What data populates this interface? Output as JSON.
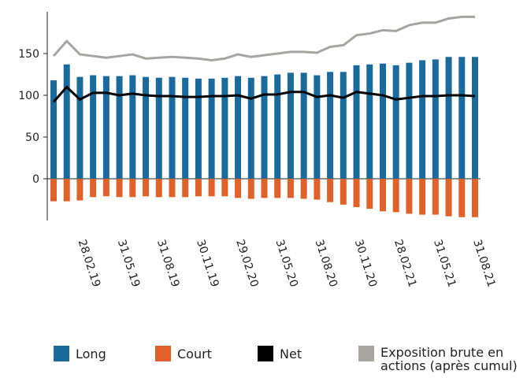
{
  "chart_data": {
    "type": "bar",
    "categories": [
      null,
      null,
      "28.02.19",
      null,
      null,
      "31.05.19",
      null,
      null,
      "31.08.19",
      null,
      null,
      "30.11.19",
      null,
      null,
      "29.02.20",
      null,
      null,
      "31.05.20",
      null,
      null,
      "31.08.20",
      null,
      null,
      "30.11.20",
      null,
      null,
      "28.02.21",
      null,
      null,
      "31.05.21",
      null,
      null,
      "31.08.21"
    ],
    "series": [
      {
        "name": "Long",
        "type": "bar",
        "color": "#1b6a9c",
        "values": [
          118,
          137,
          122,
          124,
          123,
          123,
          124,
          122,
          121,
          122,
          121,
          120,
          120,
          121,
          123,
          121,
          123,
          125,
          127,
          127,
          124,
          128,
          128,
          136,
          137,
          138,
          136,
          139,
          142,
          143,
          146,
          146,
          146
        ]
      },
      {
        "name": "Court",
        "type": "bar",
        "color": "#e0622a",
        "values": [
          -27,
          -27,
          -26,
          -22,
          -21,
          -22,
          -22,
          -21,
          -22,
          -22,
          -22,
          -21,
          -21,
          -21,
          -23,
          -24,
          -23,
          -23,
          -23,
          -24,
          -25,
          -28,
          -31,
          -34,
          -36,
          -39,
          -40,
          -42,
          -43,
          -43,
          -45,
          -46,
          -46
        ]
      },
      {
        "name": "Net",
        "type": "line",
        "color": "#000000",
        "values": [
          92,
          110,
          95,
          103,
          103,
          100,
          102,
          100,
          99,
          99,
          98,
          98,
          99,
          99,
          100,
          96,
          101,
          101,
          104,
          104,
          98,
          100,
          97,
          104,
          102,
          100,
          95,
          97,
          99,
          99,
          100,
          100,
          99
        ]
      },
      {
        "name": "Exposition brute en actions (après cumul)",
        "type": "line",
        "color": "#a8a4a0",
        "values": [
          147,
          165,
          149,
          147,
          145,
          147,
          149,
          144,
          145,
          146,
          145,
          144,
          142,
          144,
          149,
          146,
          148,
          150,
          152,
          152,
          151,
          158,
          160,
          172,
          174,
          178,
          177,
          184,
          187,
          187,
          192,
          194,
          194
        ]
      }
    ],
    "ylim": [
      -50,
      200
    ],
    "yticks": [
      0,
      50,
      100,
      150
    ]
  }
}
